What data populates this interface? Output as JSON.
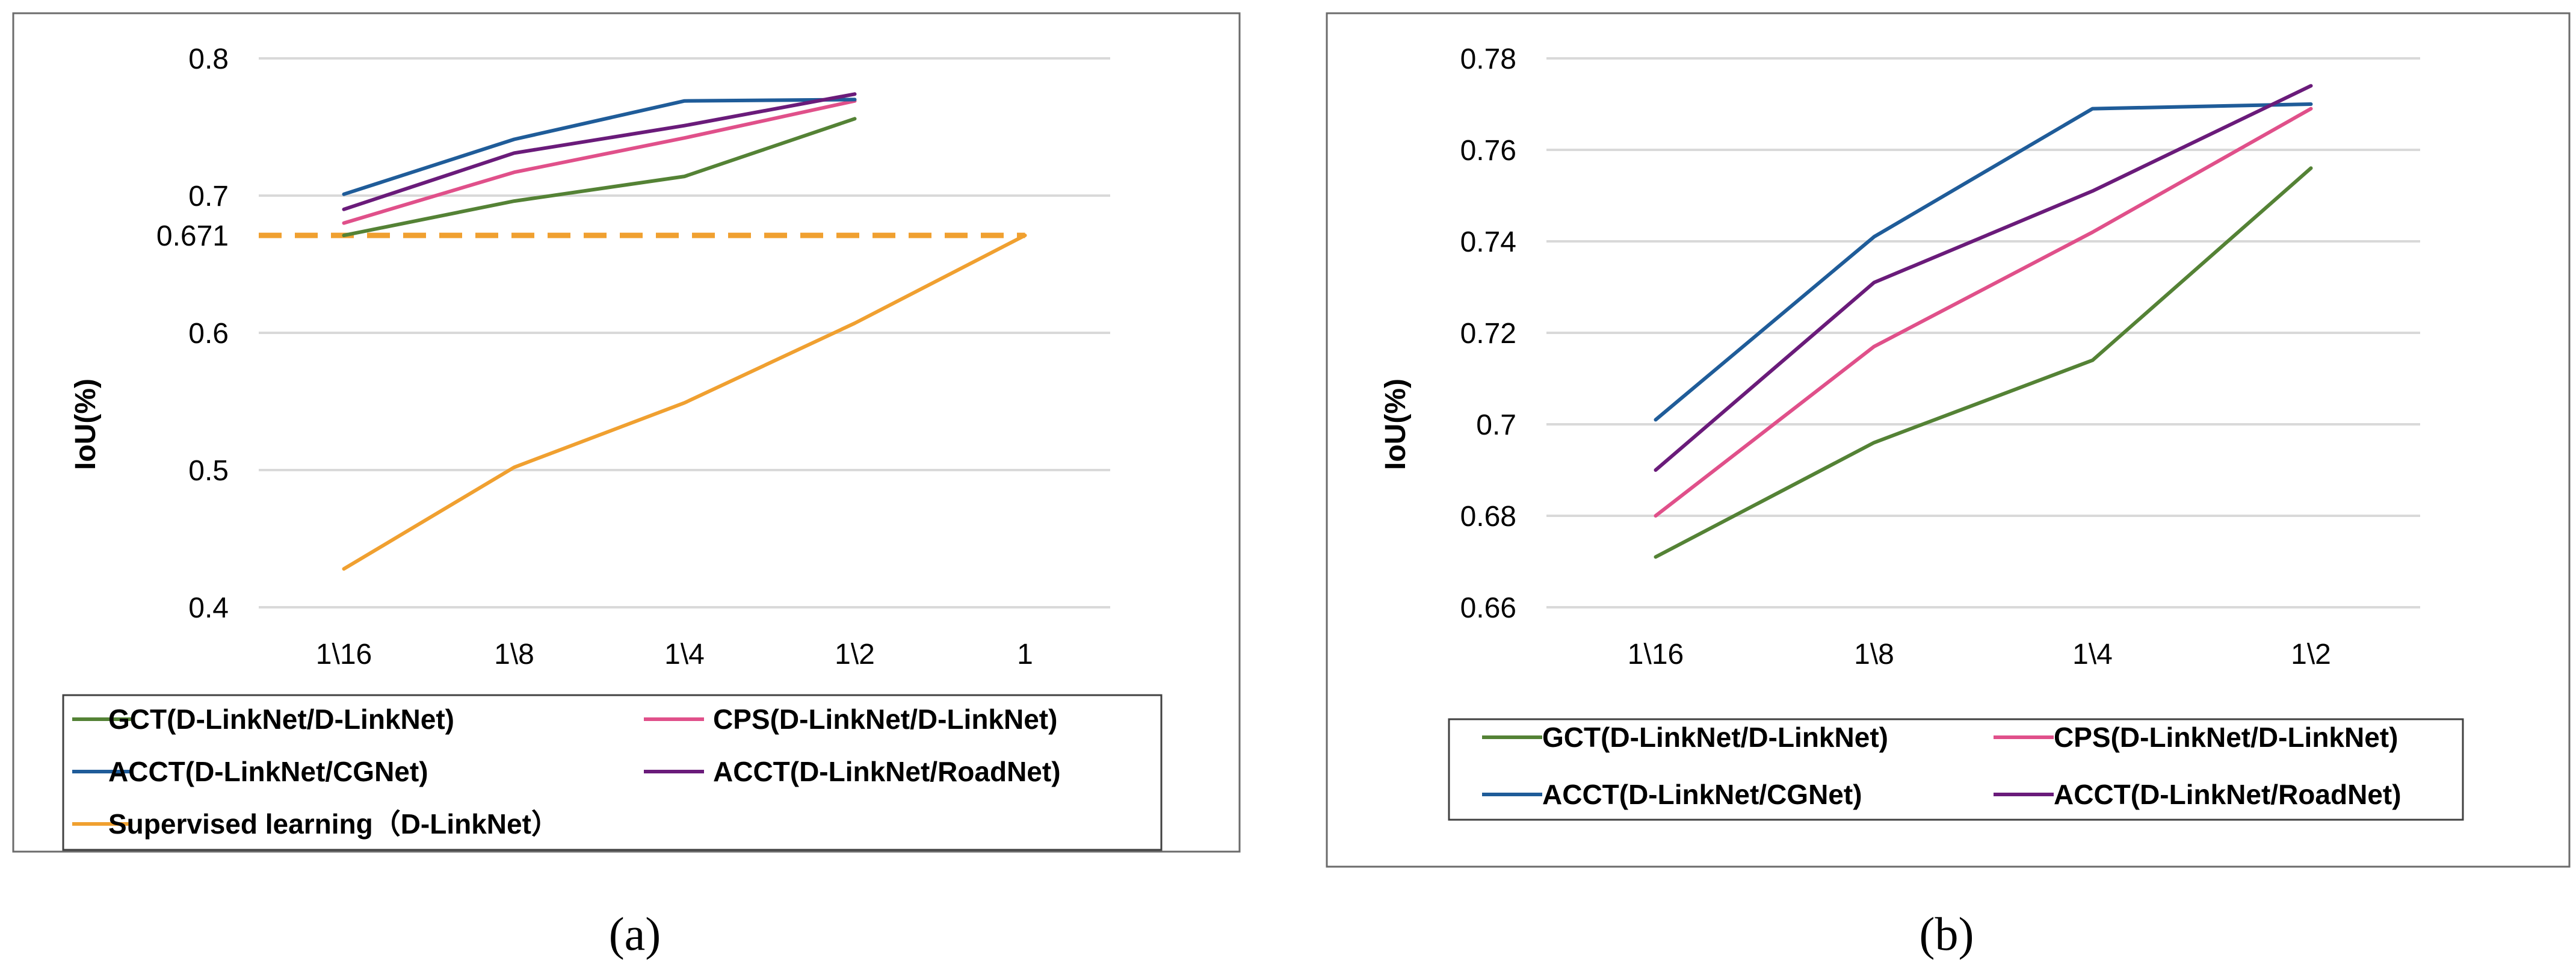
{
  "chart_data": [
    {
      "type": "line",
      "panel": "(a)",
      "ylabel": "IoU(%)",
      "xlabel": "",
      "categories": [
        "1\\16",
        "1\\8",
        "1\\4",
        "1\\2",
        "1"
      ],
      "ylim": [
        0.4,
        0.8
      ],
      "yticks": [
        "0.4",
        "0.5",
        "0.6",
        "0.671",
        "0.7",
        "0.8"
      ],
      "ytick_values": [
        0.4,
        0.5,
        0.6,
        0.671,
        0.7,
        0.8
      ],
      "reference_line": {
        "value": 0.671,
        "color": "#f0a030",
        "style": "dashed"
      },
      "grid": true,
      "legend_position": "bottom",
      "series": [
        {
          "name": "GCT(D-LinkNet/D-LinkNet)",
          "color": "#548235",
          "values": [
            0.671,
            0.696,
            0.714,
            0.756,
            null
          ]
        },
        {
          "name": "CPS(D-LinkNet/D-LinkNet)",
          "color": "#e0508a",
          "values": [
            0.68,
            0.717,
            0.742,
            0.769,
            null
          ]
        },
        {
          "name": "ACCT(D-LinkNet/CGNet)",
          "color": "#1f5c99",
          "values": [
            0.701,
            0.741,
            0.769,
            0.77,
            null
          ]
        },
        {
          "name": "ACCT(D-LinkNet/RoadNet)",
          "color": "#6a1b7a",
          "values": [
            0.69,
            0.731,
            0.751,
            0.774,
            null
          ]
        },
        {
          "name": "Supervised learning（D-LinkNet）",
          "color": "#f0a030",
          "values": [
            0.428,
            0.502,
            0.549,
            0.607,
            0.671
          ]
        }
      ]
    },
    {
      "type": "line",
      "panel": "(b)",
      "ylabel": "IoU(%)",
      "xlabel": "",
      "categories": [
        "1\\16",
        "1\\8",
        "1\\4",
        "1\\2"
      ],
      "ylim": [
        0.66,
        0.78
      ],
      "yticks": [
        "0.66",
        "0.68",
        "0.7",
        "0.72",
        "0.74",
        "0.76",
        "0.78"
      ],
      "ytick_values": [
        0.66,
        0.68,
        0.7,
        0.72,
        0.74,
        0.76,
        0.78
      ],
      "grid": true,
      "legend_position": "bottom",
      "series": [
        {
          "name": "GCT(D-LinkNet/D-LinkNet)",
          "color": "#548235",
          "values": [
            0.671,
            0.696,
            0.714,
            0.756
          ]
        },
        {
          "name": "CPS(D-LinkNet/D-LinkNet)",
          "color": "#e0508a",
          "values": [
            0.68,
            0.717,
            0.742,
            0.769
          ]
        },
        {
          "name": "ACCT(D-LinkNet/CGNet)",
          "color": "#1f5c99",
          "values": [
            0.701,
            0.741,
            0.769,
            0.77
          ]
        },
        {
          "name": "ACCT(D-LinkNet/RoadNet)",
          "color": "#6a1b7a",
          "values": [
            0.69,
            0.731,
            0.751,
            0.774
          ]
        }
      ]
    }
  ]
}
